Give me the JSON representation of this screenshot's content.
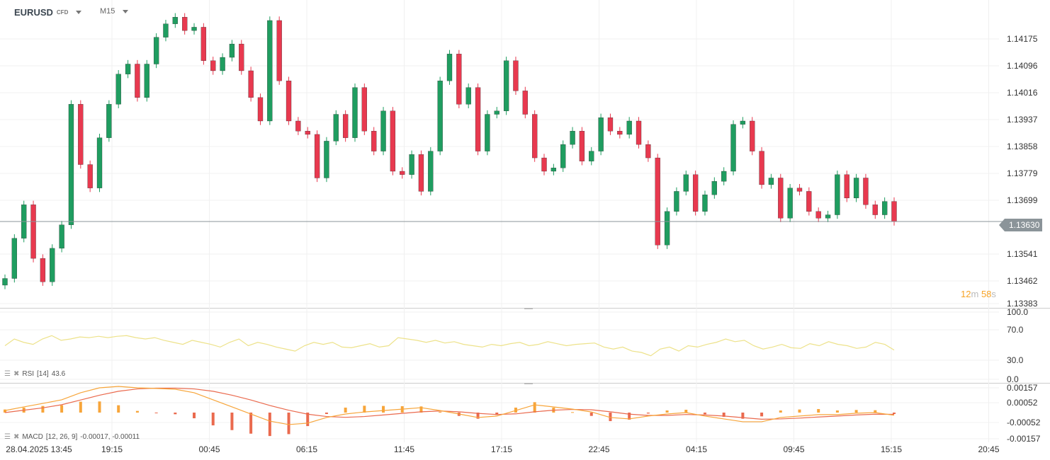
{
  "header": {
    "symbol": "EURUSD",
    "symbol_type": "CFD",
    "timeframe": "M15"
  },
  "colors": {
    "up": "#1f9d60",
    "down": "#e8394f",
    "rsi": "#ede28a",
    "macd": "#f7a53a",
    "signal": "#ea6a4e",
    "hist_up": "#f7a53a",
    "hist_down": "#ea6a4e",
    "price_line": "#8b9499",
    "countdown": "#f7a325"
  },
  "price_axis": {
    "ticks": [
      "1.14175",
      "1.14096",
      "1.14016",
      "1.13937",
      "1.13858",
      "1.13779",
      "1.13699",
      "1.13541",
      "1.13462",
      "1.13383"
    ],
    "current_price": "1.13630"
  },
  "countdown": {
    "minutes": "12",
    "m": "m",
    "seconds": "58",
    "s": "s"
  },
  "rsi": {
    "label": "RSI",
    "params": "[14]",
    "value": "43.6",
    "ticks": [
      "100.0",
      "70.0",
      "30.0",
      "0.0"
    ],
    "values": [
      50,
      60,
      55,
      52,
      60,
      65,
      58,
      60,
      63,
      62,
      64,
      62,
      64,
      65,
      62,
      60,
      62,
      58,
      55,
      52,
      58,
      55,
      52,
      48,
      55,
      60,
      50,
      55,
      52,
      48,
      45,
      42,
      50,
      55,
      52,
      55,
      48,
      47,
      50,
      53,
      48,
      50,
      62,
      60,
      58,
      55,
      58,
      54,
      56,
      52,
      50,
      48,
      52,
      50,
      53,
      55,
      50,
      52,
      56,
      53,
      50,
      52,
      53,
      54,
      48,
      45,
      48,
      42,
      40,
      35,
      45,
      48,
      42,
      50,
      48,
      52,
      55,
      60,
      56,
      58,
      50,
      45,
      48,
      52,
      47,
      46,
      53,
      50,
      56,
      52,
      50,
      46,
      48,
      55,
      52,
      43.6
    ]
  },
  "macd": {
    "label": "MACD",
    "params": "[12, 26, 9]",
    "values_text": "-0.00017,  -0.00011",
    "ticks": [
      "0.00157",
      "0.00052",
      "-0.00052",
      "-0.00157"
    ],
    "macd": [
      0.00013,
      0.00036,
      0.00058,
      0.00081,
      0.00126,
      0.00157,
      0.00166,
      0.00157,
      0.00153,
      0.00148,
      0.00126,
      0.00081,
      0.00036,
      -9e-05,
      -0.00054,
      -0.00076,
      -0.00067,
      -0.00031,
      -9e-05,
      4e-05,
      0.00013,
      0.00022,
      0.00031,
      0.00013,
      -9e-05,
      -0.00031,
      -0.00022,
      0.00013,
      0.00049,
      0.00036,
      0.00022,
      4e-05,
      -0.00031,
      -0.0004,
      -0.00022,
      -9e-05,
      0,
      -0.00022,
      -0.0004,
      -0.00058,
      -0.00058,
      -0.00031,
      -0.00022,
      -0.00013,
      -0.00013,
      -4e-05,
      0,
      -0.00017
    ],
    "signal": [
      0,
      0.00015,
      0.0003,
      0.0005,
      0.0008,
      0.0011,
      0.00135,
      0.0015,
      0.00155,
      0.00155,
      0.0015,
      0.00135,
      0.0011,
      0.0008,
      0.00045,
      0.00015,
      -0.0001,
      -0.00025,
      -0.0003,
      -0.00025,
      -0.00015,
      -5e-05,
      5e-05,
      0.0001,
      5e-05,
      -5e-05,
      -0.00012,
      -8e-05,
      5e-05,
      0.00015,
      0.0002,
      0.00018,
      5e-05,
      -0.0001,
      -0.00018,
      -0.00018,
      -0.00012,
      -0.00015,
      -0.00022,
      -0.00032,
      -0.00042,
      -0.0004,
      -0.00035,
      -0.00028,
      -0.00022,
      -0.00015,
      -0.0001,
      -0.00011
    ]
  },
  "time_axis": {
    "labels": [
      "28.04.2025  13:45",
      "19:15",
      "00:45",
      "06:15",
      "11:45",
      "17:15",
      "22:45",
      "04:15",
      "09:45",
      "15:15",
      "20:45"
    ]
  },
  "chart_data": {
    "type": "candlestick",
    "ylim": [
      1.1338,
      1.1426
    ],
    "closes": [
      1.1346,
      1.1358,
      1.1368,
      1.1352,
      1.1345,
      1.1355,
      1.1362,
      1.1398,
      1.138,
      1.1373,
      1.1388,
      1.1398,
      1.1407,
      1.141,
      1.14,
      1.141,
      1.1418,
      1.1422,
      1.1424,
      1.142,
      1.1421,
      1.1411,
      1.1408,
      1.1412,
      1.1416,
      1.1408,
      1.14,
      1.1393,
      1.1423,
      1.1405,
      1.1393,
      1.139,
      1.1389,
      1.1376,
      1.1387,
      1.1395,
      1.1388,
      1.1403,
      1.139,
      1.1384,
      1.1396,
      1.1378,
      1.1377,
      1.1383,
      1.1372,
      1.1384,
      1.1405,
      1.1413,
      1.1398,
      1.1403,
      1.1384,
      1.1395,
      1.1396,
      1.1411,
      1.1402,
      1.1395,
      1.1382,
      1.1378,
      1.1379,
      1.1386,
      1.139,
      1.1381,
      1.1384,
      1.1394,
      1.139,
      1.1389,
      1.1393,
      1.1386,
      1.1382,
      1.1356,
      1.1366,
      1.1372,
      1.1377,
      1.1366,
      1.1371,
      1.1375,
      1.1378,
      1.1392,
      1.1393,
      1.1384,
      1.1374,
      1.1376,
      1.1364,
      1.1373,
      1.1372,
      1.1366,
      1.1364,
      1.1365,
      1.1377,
      1.137,
      1.1376,
      1.1368,
      1.1365,
      1.1369,
      1.1363
    ]
  }
}
